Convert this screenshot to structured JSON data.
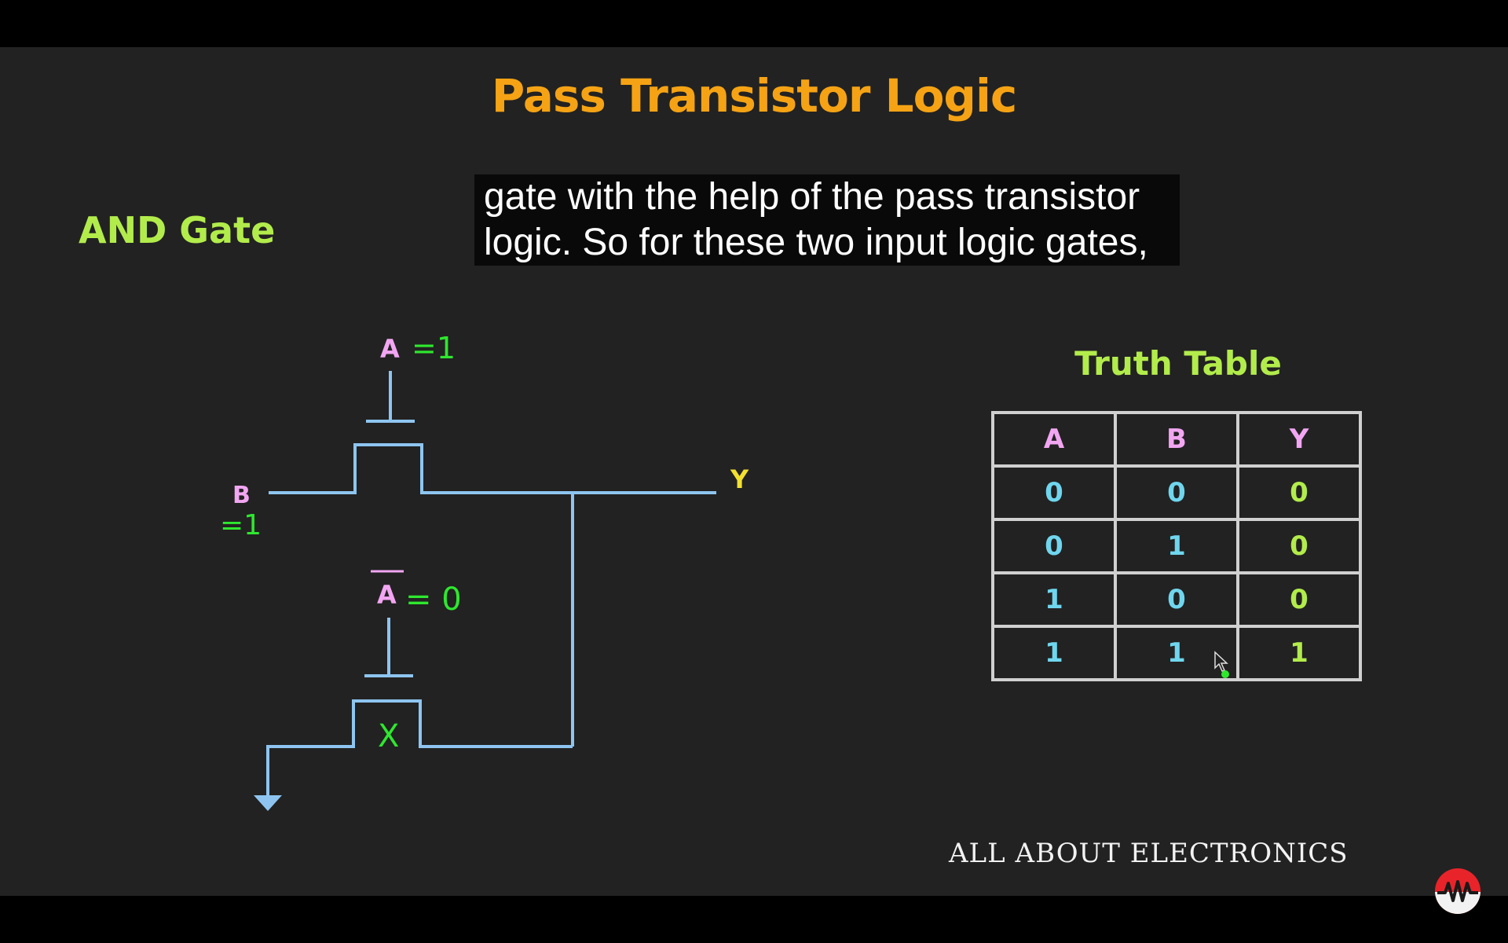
{
  "slide": {
    "title": "Pass Transistor Logic",
    "gate_title": "AND Gate",
    "caption_line1": "gate with the help of the pass transistor",
    "caption_line2": "logic. So for these two input logic gates,",
    "brand": "ALL ABOUT ELECTRONICS"
  },
  "circuit": {
    "label_a": "A",
    "a_value": "=1",
    "label_b": "B",
    "b_value": "=1",
    "label_abar": "A",
    "abar_value": "= 0",
    "label_y": "Y",
    "off_mark": "X"
  },
  "truth_table": {
    "title": "Truth Table",
    "headers": [
      "A",
      "B",
      "Y"
    ],
    "rows": [
      [
        "0",
        "0",
        "0"
      ],
      [
        "0",
        "1",
        "0"
      ],
      [
        "1",
        "0",
        "0"
      ],
      [
        "1",
        "1",
        "1"
      ]
    ]
  },
  "colors": {
    "background": "#222222",
    "title": "#f5a314",
    "accent_green": "#b2ec4b",
    "wire": "#8ec5f0",
    "label_pink": "#f2a6f2",
    "handwritten_green": "#2ee82e",
    "y_label": "#f2e030",
    "logo_red": "#e8242a"
  },
  "icons": [
    "mouse-cursor-icon",
    "ground-symbol-icon",
    "channel-logo-icon"
  ]
}
